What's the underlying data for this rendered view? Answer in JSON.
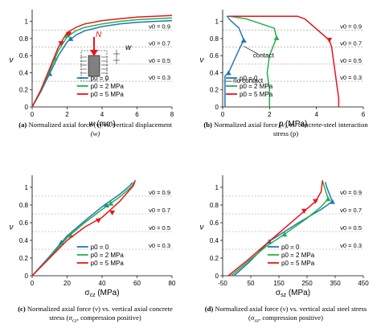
{
  "colors": {
    "p0_0": "#1f77b4",
    "p0_2": "#22b14c",
    "p0_5": "#e8151b",
    "ref": "#999999",
    "axis": "#000000"
  },
  "chart_data": [
    {
      "type": "line",
      "id": "a",
      "xlabel": "w (mm)",
      "ylabel": "ν",
      "xlim": [
        0,
        8
      ],
      "ylim": [
        0,
        1.1
      ],
      "xticks": [
        "0",
        "2",
        "4",
        "6",
        "8"
      ],
      "yticks": [
        "0",
        "0.2",
        "0.4",
        "0.6",
        "0.8",
        "1"
      ],
      "legend": [
        "p0 = 0",
        "p0 = 2 MPa",
        "p0 = 5 MPa"
      ],
      "legend_position": "bottom-center",
      "series": [
        {
          "name": "p0 = 0",
          "color": "#1f77b4",
          "markers": [
            [
              1.0,
              0.39
            ],
            [
              2.2,
              0.8
            ]
          ],
          "values": [
            [
              0,
              0
            ],
            [
              0.5,
              0.18
            ],
            [
              1.0,
              0.39
            ],
            [
              1.5,
              0.6
            ],
            [
              2.0,
              0.76
            ],
            [
              2.5,
              0.84
            ],
            [
              3.0,
              0.89
            ],
            [
              4.0,
              0.94
            ],
            [
              5.0,
              0.97
            ],
            [
              6.0,
              0.99
            ],
            [
              7.0,
              1.0
            ],
            [
              8.0,
              1.01
            ]
          ]
        },
        {
          "name": "p0 = 2 MPa",
          "color": "#22b14c",
          "markers": [
            [
              1.3,
              0.57
            ],
            [
              2.0,
              0.84
            ]
          ],
          "values": [
            [
              0,
              0
            ],
            [
              0.5,
              0.19
            ],
            [
              1.0,
              0.42
            ],
            [
              1.5,
              0.66
            ],
            [
              2.0,
              0.82
            ],
            [
              2.5,
              0.89
            ],
            [
              3.0,
              0.93
            ],
            [
              4.0,
              0.97
            ],
            [
              5.0,
              1.0
            ],
            [
              6.0,
              1.02
            ],
            [
              7.0,
              1.03
            ],
            [
              8.0,
              1.04
            ]
          ]
        },
        {
          "name": "p0 = 5 MPa",
          "color": "#e8151b",
          "markers": [
            [
              1.65,
              0.74
            ],
            [
              2.1,
              0.85
            ]
          ],
          "values": [
            [
              0,
              0
            ],
            [
              0.5,
              0.2
            ],
            [
              1.0,
              0.45
            ],
            [
              1.5,
              0.7
            ],
            [
              2.0,
              0.87
            ],
            [
              2.5,
              0.93
            ],
            [
              3.0,
              0.97
            ],
            [
              4.0,
              1.01
            ],
            [
              5.0,
              1.03
            ],
            [
              6.0,
              1.05
            ],
            [
              7.0,
              1.06
            ],
            [
              8.0,
              1.07
            ]
          ]
        }
      ],
      "annotations": [
        "N",
        "w"
      ]
    },
    {
      "type": "line",
      "id": "b",
      "xlabel": "p (MPa)",
      "ylabel": "ν",
      "xlim": [
        0,
        6
      ],
      "ylim": [
        0,
        1.1
      ],
      "xticks": [
        "0",
        "2",
        "4",
        "6"
      ],
      "yticks": [
        "0",
        "0.2",
        "0.4",
        "0.6",
        "0.8",
        "1"
      ],
      "legend": [
        "p0 = 0",
        "p0 = 2 MPa",
        "p0 = 5 MPa"
      ],
      "legend_position": "bottom-left",
      "series": [
        {
          "name": "p0 = 0",
          "color": "#1f77b4",
          "markers": [
            [
              0.25,
              0.4
            ],
            [
              0.9,
              0.78
            ]
          ],
          "values": [
            [
              0.1,
              0
            ],
            [
              0.1,
              0.36
            ],
            [
              0.25,
              0.4
            ],
            [
              0.5,
              0.55
            ],
            [
              0.75,
              0.7
            ],
            [
              0.9,
              0.78
            ],
            [
              0.7,
              0.92
            ],
            [
              0.3,
              1.02
            ],
            [
              0.2,
              1.06
            ],
            [
              1.6,
              1.06
            ],
            [
              3.0,
              1.06
            ]
          ]
        },
        {
          "name": "p0 = 2 MPa",
          "color": "#22b14c",
          "markers": [
            [
              2.3,
              0.81
            ]
          ],
          "values": [
            [
              2.0,
              0
            ],
            [
              2.0,
              0.2
            ],
            [
              1.9,
              0.4
            ],
            [
              2.0,
              0.6
            ],
            [
              2.3,
              0.81
            ],
            [
              2.2,
              0.92
            ],
            [
              1.0,
              1.03
            ],
            [
              0.3,
              1.06
            ],
            [
              1.7,
              1.06
            ],
            [
              3.2,
              1.06
            ]
          ]
        },
        {
          "name": "p0 = 5 MPa",
          "color": "#e8151b",
          "markers": [
            [
              4.55,
              0.78
            ]
          ],
          "values": [
            [
              4.95,
              0
            ],
            [
              4.95,
              0.1
            ],
            [
              4.8,
              0.4
            ],
            [
              4.65,
              0.7
            ],
            [
              4.55,
              0.78
            ],
            [
              3.5,
              1.03
            ],
            [
              3.2,
              1.06
            ],
            [
              1.5,
              1.06
            ],
            [
              0.3,
              1.06
            ]
          ]
        }
      ],
      "annotations": [
        "contact",
        "no contact"
      ]
    },
    {
      "type": "line",
      "id": "c",
      "xlabel": "σcz (MPa)",
      "ylabel": "ν",
      "xlim": [
        0,
        80
      ],
      "ylim": [
        0,
        1.1
      ],
      "xticks": [
        "0",
        "20",
        "40",
        "60",
        "80"
      ],
      "yticks": [
        "0",
        "0.2",
        "0.4",
        "0.6",
        "0.8",
        "1"
      ],
      "legend": [
        "p0 = 0",
        "p0 = 2 MPa",
        "p0 = 5 MPa"
      ],
      "legend_position": "bottom-center",
      "series": [
        {
          "name": "p0 = 0",
          "color": "#1f77b4",
          "markers": [
            [
              16.7,
              0.38
            ],
            [
              42.6,
              0.8
            ]
          ],
          "values": [
            [
              0,
              0
            ],
            [
              10,
              0.22
            ],
            [
              20,
              0.45
            ],
            [
              30,
              0.62
            ],
            [
              40,
              0.78
            ],
            [
              50,
              0.92
            ],
            [
              56,
              1.02
            ],
            [
              57,
              1.05
            ]
          ]
        },
        {
          "name": "p0 = 2 MPa",
          "color": "#22b14c",
          "markers": [
            [
              22.0,
              0.46
            ],
            [
              45.0,
              0.82
            ]
          ],
          "values": [
            [
              0,
              0
            ],
            [
              10,
              0.21
            ],
            [
              20,
              0.43
            ],
            [
              30,
              0.6
            ],
            [
              40,
              0.75
            ],
            [
              50,
              0.89
            ],
            [
              57,
              1.01
            ],
            [
              58,
              1.06
            ]
          ]
        },
        {
          "name": "p0 = 5 MPa",
          "color": "#e8151b",
          "markers": [
            [
              37.9,
              0.62
            ],
            [
              45.8,
              0.71
            ]
          ],
          "values": [
            [
              0,
              0
            ],
            [
              10,
              0.2
            ],
            [
              20,
              0.4
            ],
            [
              30,
              0.55
            ],
            [
              40,
              0.66
            ],
            [
              50,
              0.84
            ],
            [
              58,
              1.02
            ],
            [
              59,
              1.08
            ]
          ]
        }
      ],
      "annotations": []
    },
    {
      "type": "line",
      "id": "d",
      "xlabel": "σsz (MPa)",
      "ylabel": "ν",
      "xlim": [
        -50,
        450
      ],
      "ylim": [
        0,
        1.1
      ],
      "xticks": [
        "-50",
        "50",
        "150",
        "250",
        "350",
        "450"
      ],
      "yticks": [
        "0",
        "0.2",
        "0.4",
        "0.6",
        "0.8",
        "1"
      ],
      "legend": [
        "p0 = 0",
        "p0 = 2 MPa",
        "p0 = 5 MPa"
      ],
      "legend_position": "bottom-center",
      "series": [
        {
          "name": "p0 = 0",
          "color": "#1f77b4",
          "markers": [
            [
              116,
              0.39
            ],
            [
              340,
              0.84
            ]
          ],
          "values": [
            [
              -10,
              0
            ],
            [
              40,
              0.14
            ],
            [
              80,
              0.27
            ],
            [
              116,
              0.39
            ],
            [
              220,
              0.6
            ],
            [
              300,
              0.75
            ],
            [
              340,
              0.84
            ],
            [
              320,
              1.0
            ],
            [
              315,
              1.06
            ]
          ]
        },
        {
          "name": "p0 = 2 MPa",
          "color": "#22b14c",
          "markers": [
            [
              170,
              0.47
            ],
            [
              325,
              0.87
            ]
          ],
          "values": [
            [
              -20,
              0
            ],
            [
              40,
              0.16
            ],
            [
              100,
              0.32
            ],
            [
              170,
              0.47
            ],
            [
              250,
              0.65
            ],
            [
              300,
              0.78
            ],
            [
              325,
              0.87
            ],
            [
              310,
              1.02
            ],
            [
              305,
              1.07
            ]
          ]
        },
        {
          "name": "p0 = 5 MPa",
          "color": "#e8151b",
          "markers": [
            [
              240,
              0.73
            ],
            [
              280,
              0.84
            ]
          ],
          "values": [
            [
              -30,
              0
            ],
            [
              40,
              0.18
            ],
            [
              120,
              0.4
            ],
            [
              200,
              0.62
            ],
            [
              240,
              0.73
            ],
            [
              280,
              0.84
            ],
            [
              300,
              0.95
            ],
            [
              305,
              1.08
            ]
          ]
        }
      ],
      "annotations": []
    }
  ],
  "ref_lines": [
    {
      "label": "ν0 = 0.9",
      "value": 0.9
    },
    {
      "label": "ν0 = 0.7",
      "value": 0.7
    },
    {
      "label": "ν0 = 0.5",
      "value": 0.5
    },
    {
      "label": "ν0 = 0.3",
      "value": 0.3
    }
  ],
  "captions": {
    "a": {
      "tag": "(a)",
      "text": "Normalized axial force (ν) vs. vertical displacement",
      "line2": "(w)"
    },
    "b": {
      "tag": "(b)",
      "text": "Normalized axial force (ν) vs. concrete-steel interaction",
      "line2": "stress (p)"
    },
    "c": {
      "tag": "(c)",
      "text": "Normalized axial force (ν) vs. vertical axial concrete",
      "line2_pre": "stress (σ",
      "line2_sub": "cz",
      "line2_post": ", compression positive)"
    },
    "d": {
      "tag": "(d)",
      "text": "Normalized axial force (ν) vs. vertical axial steel stress",
      "line2_pre": "(σ",
      "line2_sub": "sz",
      "line2_post": ", compression positive)"
    }
  }
}
